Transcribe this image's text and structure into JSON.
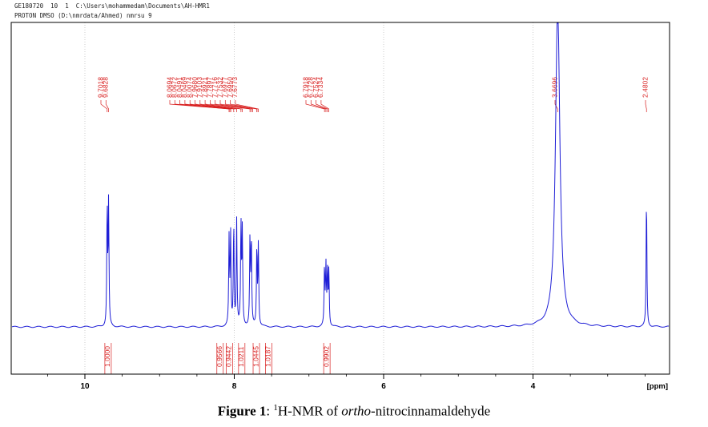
{
  "header": {
    "line1": "GE180720  10  1  C:\\Users\\mohammedam\\Documents\\AH-HMR1",
    "line2": "PROTON DMSO (D:\\nmrdata/Ahmed) nmrsu 9"
  },
  "chart_data": {
    "type": "line",
    "xlabel": "[ppm]",
    "x_reversed": true,
    "xlim": [
      11.0,
      1.3
    ],
    "x_ticks": [
      10,
      8,
      6,
      4
    ],
    "x_tick_labels": [
      "10",
      "8",
      "6",
      "4"
    ],
    "grid": "vertical-dotted",
    "peak_labels": [
      {
        "group": "a",
        "values": [
          "9.7018",
          "9.6828"
        ]
      },
      {
        "group": "b",
        "values": [
          "8.0694",
          "8.0672",
          "8.0491",
          "8.0469",
          "8.0074",
          "7.9680",
          "7.9103",
          "7.8921",
          "7.7897",
          "7.7716",
          "7.7532",
          "7.6977",
          "7.6950",
          "7.6773"
        ]
      },
      {
        "group": "c",
        "values": [
          "6.7918",
          "6.7728",
          "6.7524",
          "6.7334"
        ]
      },
      {
        "group": "d",
        "values": [
          "3.6696"
        ]
      },
      {
        "group": "e",
        "values": [
          "2.4802"
        ]
      }
    ],
    "peaks": [
      {
        "ppm": 9.7018,
        "height": 0.5
      },
      {
        "ppm": 9.6828,
        "height": 0.51
      },
      {
        "ppm": 8.0694,
        "height": 0.36
      },
      {
        "ppm": 8.0491,
        "height": 0.38
      },
      {
        "ppm": 8.0074,
        "height": 0.43
      },
      {
        "ppm": 7.968,
        "height": 0.44
      },
      {
        "ppm": 7.9103,
        "height": 0.42
      },
      {
        "ppm": 7.8921,
        "height": 0.39
      },
      {
        "ppm": 7.7897,
        "height": 0.36
      },
      {
        "ppm": 7.7716,
        "height": 0.36
      },
      {
        "ppm": 7.6977,
        "height": 0.33
      },
      {
        "ppm": 7.6773,
        "height": 0.34
      },
      {
        "ppm": 6.7918,
        "height": 0.24
      },
      {
        "ppm": 6.7728,
        "height": 0.24
      },
      {
        "ppm": 6.7524,
        "height": 0.23
      },
      {
        "ppm": 6.7334,
        "height": 0.23
      },
      {
        "ppm": 3.6696,
        "height": 1.35
      },
      {
        "ppm": 2.4802,
        "height": 0.55
      }
    ],
    "integrals": [
      {
        "ppm": 9.69,
        "value": "1.0000"
      },
      {
        "ppm": 8.04,
        "value": "0.9566"
      },
      {
        "ppm": 7.99,
        "value": "0.9442"
      },
      {
        "ppm": 7.9,
        "value": "1.0211"
      },
      {
        "ppm": 7.78,
        "value": "1.0445"
      },
      {
        "ppm": 7.69,
        "value": "1.0187"
      },
      {
        "ppm": 6.76,
        "value": "0.9902"
      }
    ],
    "colors": {
      "spectrum": "#1f1fd6",
      "labels": "#d81e1e",
      "axis": "#000000",
      "grid": "#b8b8b8"
    }
  },
  "caption": {
    "prefix": "Figure 1",
    "colon": ": ",
    "sup": "1",
    "text_before": "H-NMR of ",
    "italic": "ortho",
    "text_after": "-nitrocinnamaldehyde"
  }
}
